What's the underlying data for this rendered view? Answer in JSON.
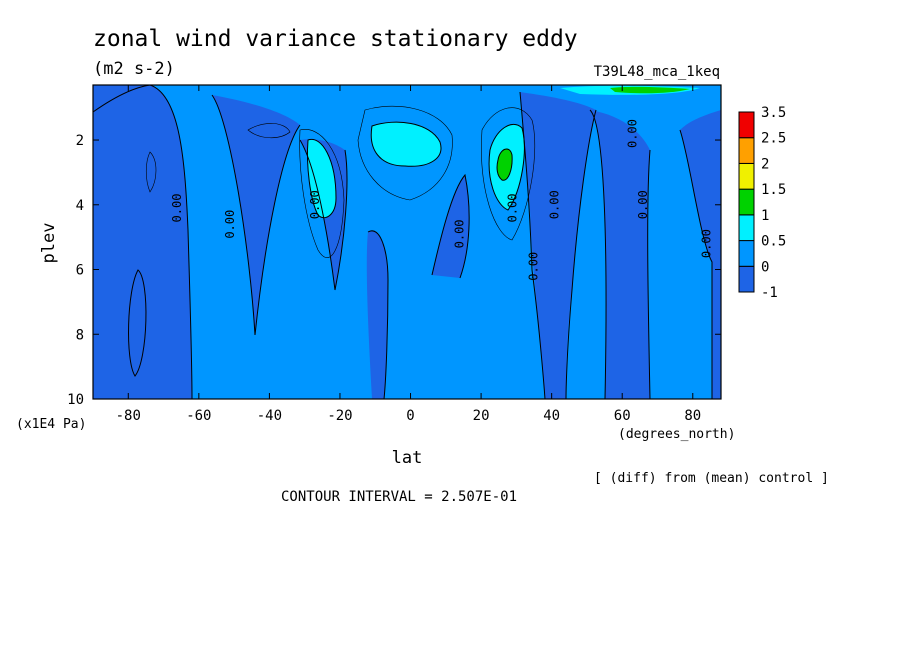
{
  "chart_data": {
    "type": "contour",
    "title": "zonal wind variance stationary eddy",
    "units": "(m2 s-2)",
    "run_label": "T39L48_mca_1keq",
    "xlabel": "lat",
    "x_units": "(degrees_north)",
    "ylabel": "plev",
    "y_units": "(x1E4 Pa)",
    "xlim": [
      -90,
      88
    ],
    "ylim": [
      10,
      0.3
    ],
    "x_ticks": [
      -80,
      -60,
      -40,
      -20,
      0,
      20,
      40,
      60,
      80
    ],
    "y_ticks": [
      2,
      4,
      6,
      8,
      10
    ],
    "contour_label": "0.00",
    "contour_interval_text": "CONTOUR INTERVAL = 2.507E-01",
    "diff_note": "[ (diff) from (mean) control ]",
    "colorbar": {
      "levels": [
        "-1",
        "0",
        "0.5",
        "1",
        "1.5",
        "2",
        "2.5",
        "3.5"
      ],
      "colors": [
        "#1e64e6",
        "#0096ff",
        "#00f0ff",
        "#00d200",
        "#f0f000",
        "#ffa000",
        "#f00000"
      ]
    },
    "field_colors": {
      "negative": "#1e64e6",
      "low": "#0096ff",
      "mid": "#00f0ff",
      "high": "#00d200"
    },
    "features": [
      {
        "name": "cyan core",
        "lat": 24,
        "plev": 2.9,
        "level": "0.5-1"
      },
      {
        "name": "green core",
        "lat": 28,
        "plev": 2.6,
        "level": "1-1.5"
      },
      {
        "name": "cyan core",
        "lat": -25,
        "plev": 2.9,
        "level": "0.5-1"
      },
      {
        "name": "cyan core",
        "lat": -1,
        "plev": 1.9,
        "level": "0.5-1"
      }
    ]
  }
}
